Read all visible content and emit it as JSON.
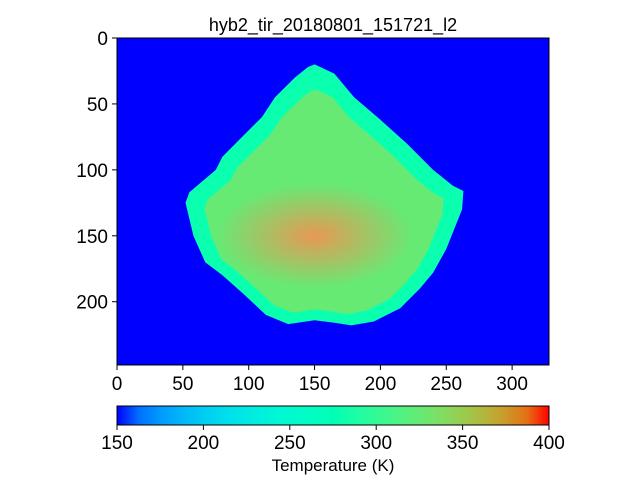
{
  "chart_data": {
    "type": "heatmap",
    "title": "hyb2_tir_20180801_151721_l2",
    "x_ticks": [
      "0",
      "50",
      "100",
      "150",
      "200",
      "250",
      "300"
    ],
    "x_tick_values": [
      0,
      50,
      100,
      150,
      200,
      250,
      300
    ],
    "y_ticks": [
      "0",
      "50",
      "100",
      "150",
      "200"
    ],
    "y_tick_values": [
      0,
      50,
      100,
      150,
      200
    ],
    "xlim": [
      0,
      328
    ],
    "ylim": [
      248,
      0
    ],
    "image_width": 328,
    "image_height": 248,
    "background_value": 150,
    "colormap": "rainbow",
    "colorbar": {
      "label": "Temperature (K)",
      "ticks": [
        "150",
        "200",
        "250",
        "300",
        "350",
        "400"
      ],
      "tick_values": [
        150,
        200,
        250,
        300,
        350,
        400
      ],
      "range": [
        150,
        400
      ],
      "orientation": "horizontal"
    },
    "object": {
      "name": "asteroid",
      "outline": [
        [
          150,
          20
        ],
        [
          165,
          27
        ],
        [
          180,
          45
        ],
        [
          200,
          62
        ],
        [
          220,
          80
        ],
        [
          240,
          100
        ],
        [
          255,
          112
        ],
        [
          263,
          116
        ],
        [
          262,
          130
        ],
        [
          250,
          160
        ],
        [
          240,
          178
        ],
        [
          230,
          190
        ],
        [
          215,
          205
        ],
        [
          195,
          215
        ],
        [
          178,
          218
        ],
        [
          165,
          216
        ],
        [
          150,
          214
        ],
        [
          130,
          217
        ],
        [
          113,
          210
        ],
        [
          97,
          195
        ],
        [
          80,
          180
        ],
        [
          67,
          170
        ],
        [
          58,
          150
        ],
        [
          52,
          125
        ],
        [
          55,
          117
        ],
        [
          75,
          100
        ],
        [
          80,
          90
        ],
        [
          95,
          75
        ],
        [
          110,
          60
        ],
        [
          120,
          45
        ],
        [
          135,
          30
        ],
        [
          145,
          22
        ]
      ],
      "edge_value": 280,
      "interior_value": 325,
      "hot_value": 335,
      "hot_center": [
        150,
        150
      ],
      "hot_radius": [
        75,
        40
      ]
    },
    "grid": false,
    "colors": {
      "background": "#8000ff",
      "edge": "#80ffb4",
      "interior": "#ffa35c"
    }
  }
}
